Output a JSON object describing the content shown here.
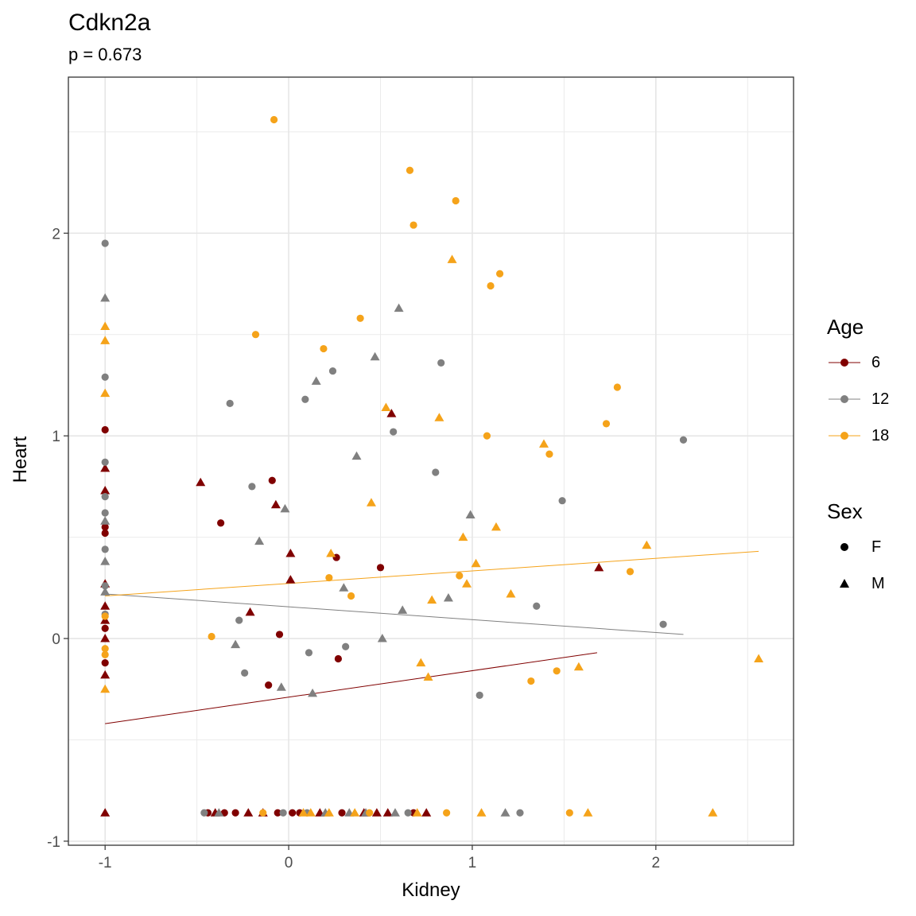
{
  "chart_data": {
    "type": "scatter",
    "title": "Cdkn2a",
    "subtitle": "p = 0.673",
    "xlabel": "Kidney",
    "ylabel": "Heart",
    "xlim": [
      -1.2,
      2.75
    ],
    "ylim": [
      -1.02,
      2.77
    ],
    "x_ticks": [
      -1,
      0,
      1,
      2
    ],
    "x_tick_labels": [
      "-1",
      "0",
      "1",
      "2"
    ],
    "y_ticks": [
      -1,
      0,
      1,
      2
    ],
    "y_tick_labels": [
      "-1",
      "0",
      "1",
      "2"
    ],
    "grid": true,
    "legend_placement": "right",
    "legends": {
      "color": {
        "title": "Age",
        "entries": [
          "6",
          "12",
          "18"
        ]
      },
      "shape": {
        "title": "Sex",
        "entries": [
          "F",
          "M"
        ]
      }
    },
    "colors": {
      "6": "#800000",
      "12": "#808080",
      "18": "#f5a31a",
      "shape_key": "#000000",
      "grid": "#ebebeb",
      "axis_text": "#4d4d4d"
    },
    "series": [
      {
        "name": "6",
        "points": [
          [
            -1,
            1.03,
            "F"
          ],
          [
            -1,
            0.55,
            "F"
          ],
          [
            -1,
            0.52,
            "F"
          ],
          [
            -1,
            0.05,
            "F"
          ],
          [
            -1,
            -0.12,
            "F"
          ],
          [
            -1,
            0.84,
            "M"
          ],
          [
            -1,
            0.73,
            "M"
          ],
          [
            -1,
            0.27,
            "M"
          ],
          [
            -1,
            0.16,
            "M"
          ],
          [
            -1,
            0.09,
            "M"
          ],
          [
            -1,
            0.0,
            "M"
          ],
          [
            -1,
            -0.18,
            "M"
          ],
          [
            -1,
            -0.86,
            "M"
          ],
          [
            -0.48,
            0.77,
            "M"
          ],
          [
            -0.37,
            0.57,
            "F"
          ],
          [
            -0.21,
            0.13,
            "M"
          ],
          [
            -0.09,
            0.78,
            "F"
          ],
          [
            -0.07,
            0.66,
            "M"
          ],
          [
            -0.05,
            0.02,
            "F"
          ],
          [
            -0.11,
            -0.23,
            "F"
          ],
          [
            0.01,
            0.42,
            "M"
          ],
          [
            0.01,
            0.29,
            "M"
          ],
          [
            0.26,
            0.4,
            "F"
          ],
          [
            0.27,
            -0.1,
            "F"
          ],
          [
            0.5,
            0.35,
            "F"
          ],
          [
            0.56,
            1.11,
            "M"
          ],
          [
            1.69,
            0.35,
            "M"
          ],
          [
            -0.44,
            -0.86,
            "F"
          ],
          [
            -0.4,
            -0.86,
            "M"
          ],
          [
            -0.35,
            -0.86,
            "F"
          ],
          [
            -0.29,
            -0.86,
            "F"
          ],
          [
            -0.22,
            -0.86,
            "M"
          ],
          [
            -0.14,
            -0.86,
            "M"
          ],
          [
            -0.06,
            -0.86,
            "F"
          ],
          [
            0.02,
            -0.86,
            "F"
          ],
          [
            0.06,
            -0.86,
            "F"
          ],
          [
            0.17,
            -0.86,
            "M"
          ],
          [
            0.29,
            -0.86,
            "F"
          ],
          [
            0.41,
            -0.86,
            "M"
          ],
          [
            0.48,
            -0.86,
            "M"
          ],
          [
            0.54,
            -0.86,
            "M"
          ],
          [
            0.68,
            -0.86,
            "F"
          ],
          [
            0.75,
            -0.86,
            "M"
          ]
        ],
        "trend": {
          "x": [
            -1,
            1.68
          ],
          "y": [
            -0.42,
            -0.07
          ]
        }
      },
      {
        "name": "12",
        "points": [
          [
            -1,
            1.95,
            "F"
          ],
          [
            -1,
            1.29,
            "F"
          ],
          [
            -1,
            0.87,
            "F"
          ],
          [
            -1,
            0.7,
            "F"
          ],
          [
            -1,
            0.62,
            "F"
          ],
          [
            -1,
            0.44,
            "F"
          ],
          [
            -1,
            0.26,
            "F"
          ],
          [
            -1,
            0.12,
            "F"
          ],
          [
            -1,
            1.68,
            "M"
          ],
          [
            -1,
            0.58,
            "M"
          ],
          [
            -1,
            0.38,
            "M"
          ],
          [
            -1,
            0.23,
            "M"
          ],
          [
            -0.32,
            1.16,
            "F"
          ],
          [
            -0.2,
            0.75,
            "F"
          ],
          [
            -0.27,
            0.09,
            "F"
          ],
          [
            -0.24,
            -0.17,
            "F"
          ],
          [
            -0.29,
            -0.03,
            "M"
          ],
          [
            -0.16,
            0.48,
            "M"
          ],
          [
            -0.04,
            -0.24,
            "M"
          ],
          [
            -0.02,
            0.64,
            "M"
          ],
          [
            0.09,
            1.18,
            "F"
          ],
          [
            0.11,
            -0.07,
            "F"
          ],
          [
            0.15,
            1.27,
            "M"
          ],
          [
            0.13,
            -0.27,
            "M"
          ],
          [
            0.24,
            1.32,
            "F"
          ],
          [
            0.31,
            -0.04,
            "F"
          ],
          [
            0.3,
            0.25,
            "M"
          ],
          [
            0.37,
            0.9,
            "M"
          ],
          [
            0.47,
            1.39,
            "M"
          ],
          [
            0.51,
            0.0,
            "M"
          ],
          [
            0.57,
            1.02,
            "F"
          ],
          [
            0.6,
            1.63,
            "M"
          ],
          [
            0.62,
            0.14,
            "M"
          ],
          [
            0.8,
            0.82,
            "F"
          ],
          [
            0.83,
            1.36,
            "F"
          ],
          [
            0.87,
            0.2,
            "M"
          ],
          [
            0.99,
            0.61,
            "M"
          ],
          [
            1.04,
            -0.28,
            "F"
          ],
          [
            1.35,
            0.16,
            "F"
          ],
          [
            1.49,
            0.68,
            "F"
          ],
          [
            2.04,
            0.07,
            "F"
          ],
          [
            2.15,
            0.98,
            "F"
          ],
          [
            -0.46,
            -0.86,
            "F"
          ],
          [
            -0.38,
            -0.86,
            "M"
          ],
          [
            -0.03,
            -0.86,
            "F"
          ],
          [
            0.1,
            -0.86,
            "F"
          ],
          [
            0.2,
            -0.86,
            "M"
          ],
          [
            0.33,
            -0.86,
            "M"
          ],
          [
            0.42,
            -0.86,
            "M"
          ],
          [
            0.58,
            -0.86,
            "M"
          ],
          [
            0.65,
            -0.86,
            "F"
          ],
          [
            1.18,
            -0.86,
            "M"
          ],
          [
            1.26,
            -0.86,
            "F"
          ]
        ],
        "trend": {
          "x": [
            -1,
            2.15
          ],
          "y": [
            0.22,
            0.02
          ]
        }
      },
      {
        "name": "18",
        "points": [
          [
            -1,
            1.54,
            "M"
          ],
          [
            -1,
            1.47,
            "M"
          ],
          [
            -1,
            1.21,
            "M"
          ],
          [
            -1,
            0.11,
            "F"
          ],
          [
            -1,
            -0.05,
            "F"
          ],
          [
            -1,
            -0.08,
            "F"
          ],
          [
            -1,
            -0.25,
            "M"
          ],
          [
            -0.08,
            2.56,
            "F"
          ],
          [
            -0.18,
            1.5,
            "F"
          ],
          [
            -0.42,
            0.01,
            "F"
          ],
          [
            0.19,
            1.43,
            "F"
          ],
          [
            0.22,
            0.3,
            "F"
          ],
          [
            0.23,
            0.42,
            "M"
          ],
          [
            0.34,
            0.21,
            "F"
          ],
          [
            0.39,
            1.58,
            "F"
          ],
          [
            0.45,
            0.67,
            "M"
          ],
          [
            0.53,
            1.14,
            "M"
          ],
          [
            0.66,
            2.31,
            "F"
          ],
          [
            0.68,
            2.04,
            "F"
          ],
          [
            0.72,
            -0.12,
            "M"
          ],
          [
            0.76,
            -0.19,
            "M"
          ],
          [
            0.78,
            0.19,
            "M"
          ],
          [
            0.82,
            1.09,
            "M"
          ],
          [
            0.89,
            1.87,
            "M"
          ],
          [
            0.91,
            2.16,
            "F"
          ],
          [
            0.93,
            0.31,
            "F"
          ],
          [
            0.95,
            0.5,
            "M"
          ],
          [
            0.97,
            0.27,
            "M"
          ],
          [
            1.02,
            0.37,
            "M"
          ],
          [
            1.08,
            1.0,
            "F"
          ],
          [
            1.1,
            1.74,
            "F"
          ],
          [
            1.13,
            0.55,
            "M"
          ],
          [
            1.15,
            1.8,
            "F"
          ],
          [
            1.21,
            0.22,
            "M"
          ],
          [
            1.32,
            -0.21,
            "F"
          ],
          [
            1.39,
            0.96,
            "M"
          ],
          [
            1.42,
            0.91,
            "F"
          ],
          [
            1.46,
            -0.16,
            "F"
          ],
          [
            1.58,
            -0.14,
            "M"
          ],
          [
            1.73,
            1.06,
            "F"
          ],
          [
            1.79,
            1.24,
            "F"
          ],
          [
            1.86,
            0.33,
            "F"
          ],
          [
            1.95,
            0.46,
            "M"
          ],
          [
            2.56,
            -0.1,
            "M"
          ],
          [
            -0.14,
            -0.86,
            "F"
          ],
          [
            0.08,
            -0.86,
            "M"
          ],
          [
            0.12,
            -0.86,
            "M"
          ],
          [
            0.22,
            -0.86,
            "M"
          ],
          [
            0.36,
            -0.86,
            "M"
          ],
          [
            0.44,
            -0.86,
            "F"
          ],
          [
            0.7,
            -0.86,
            "M"
          ],
          [
            0.86,
            -0.86,
            "F"
          ],
          [
            1.05,
            -0.86,
            "M"
          ],
          [
            1.53,
            -0.86,
            "F"
          ],
          [
            1.63,
            -0.86,
            "M"
          ],
          [
            2.31,
            -0.86,
            "M"
          ]
        ],
        "trend": {
          "x": [
            -1,
            2.56
          ],
          "y": [
            0.21,
            0.43
          ]
        }
      }
    ]
  }
}
